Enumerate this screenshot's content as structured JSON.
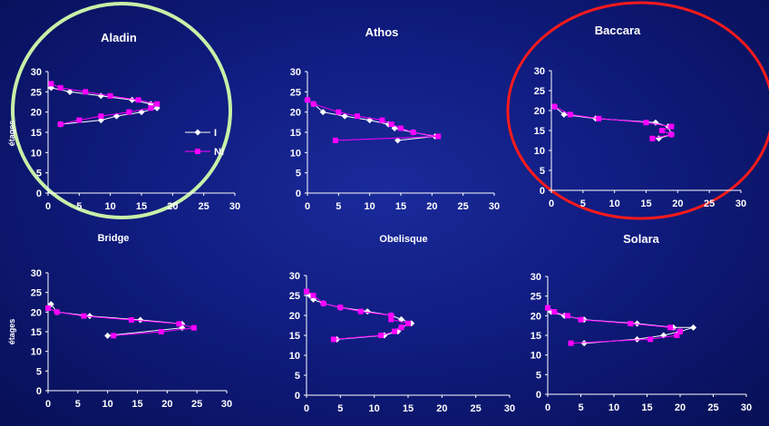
{
  "colors": {
    "series_I": "#ffffff",
    "series_NI": "#ff00ff",
    "axis": "#ffffff",
    "circle_green": "#c8f0a8",
    "circle_red": "#ff1a1a"
  },
  "legend": {
    "items": [
      "I",
      "NI"
    ]
  },
  "chart_data": [
    {
      "type": "scatter",
      "title": "Aladin",
      "ylabel": "étages",
      "xlim": [
        0,
        30
      ],
      "ylim": [
        0,
        30
      ],
      "xticks": [
        "0",
        "5",
        "10",
        "15",
        "20",
        "25",
        "30"
      ],
      "yticks": [
        "0",
        "5",
        "10",
        "15",
        "20",
        "25",
        "30"
      ],
      "highlight": "green",
      "series": [
        {
          "name": "I",
          "x": [
            0.5,
            3.5,
            8.5,
            13.5,
            16.5,
            17.5,
            15,
            11,
            8.5,
            2
          ],
          "y": [
            26,
            25,
            24,
            23,
            22,
            21,
            20,
            19,
            18,
            17
          ]
        },
        {
          "name": "NI",
          "x": [
            0.5,
            2,
            6,
            10,
            14.5,
            17.5,
            16.5,
            13,
            8.5,
            5,
            2
          ],
          "y": [
            27,
            26,
            25,
            24,
            23,
            22,
            21,
            20,
            19,
            18,
            17
          ]
        }
      ]
    },
    {
      "type": "scatter",
      "title": "Athos",
      "ylabel": "",
      "xlim": [
        0,
        30
      ],
      "ylim": [
        0,
        30
      ],
      "xticks": [
        "0",
        "5",
        "10",
        "15",
        "20",
        "25",
        "30"
      ],
      "yticks": [
        "0",
        "5",
        "10",
        "15",
        "20",
        "25",
        "30"
      ],
      "highlight": "",
      "series": [
        {
          "name": "I",
          "x": [
            0,
            1,
            2.5,
            6,
            10,
            13,
            14,
            17,
            20.5,
            14.5
          ],
          "y": [
            23,
            22,
            20,
            19,
            18,
            17,
            16,
            15,
            14,
            13
          ]
        },
        {
          "name": "NI",
          "x": [
            0,
            1,
            5,
            8,
            12,
            13.5,
            15,
            17,
            21,
            4.5
          ],
          "y": [
            23,
            22,
            20,
            19,
            18,
            17,
            16,
            15,
            14,
            13
          ]
        }
      ]
    },
    {
      "type": "scatter",
      "title": "Baccara",
      "ylabel": "",
      "xlim": [
        0,
        30
      ],
      "ylim": [
        0,
        30
      ],
      "xticks": [
        "0",
        "5",
        "10",
        "15",
        "20",
        "25",
        "30"
      ],
      "yticks": [
        "0",
        "5",
        "10",
        "15",
        "20",
        "25",
        "30"
      ],
      "highlight": "red",
      "series": [
        {
          "name": "I",
          "x": [
            0.5,
            2,
            7,
            16.5,
            18.5,
            19,
            17
          ],
          "y": [
            21,
            19,
            18,
            17,
            16,
            14,
            13
          ]
        },
        {
          "name": "NI",
          "x": [
            0.5,
            3,
            7.5,
            15,
            19,
            17.5,
            19,
            16
          ],
          "y": [
            21,
            19,
            18,
            17,
            16,
            15,
            14,
            13
          ]
        }
      ]
    },
    {
      "type": "scatter",
      "title": "Bridge",
      "ylabel": "étages",
      "xlim": [
        0,
        30
      ],
      "ylim": [
        0,
        30
      ],
      "xticks": [
        "0",
        "5",
        "10",
        "15",
        "20",
        "25",
        "30"
      ],
      "yticks": [
        "0",
        "5",
        "10",
        "15",
        "20",
        "25",
        "30"
      ],
      "highlight": "",
      "series": [
        {
          "name": "I",
          "x": [
            0.5,
            1.5,
            7,
            15.5,
            22.5,
            22.5,
            10
          ],
          "y": [
            22,
            20,
            19,
            18,
            17,
            16,
            14
          ]
        },
        {
          "name": "NI",
          "x": [
            0,
            1.5,
            6,
            14,
            22,
            24.5,
            19,
            11
          ],
          "y": [
            21,
            20,
            19,
            18,
            17,
            16,
            15,
            14
          ]
        }
      ]
    },
    {
      "type": "scatter",
      "title": "Obelisque",
      "ylabel": "",
      "xlim": [
        0,
        30
      ],
      "ylim": [
        0,
        30
      ],
      "xticks": [
        "0",
        "5",
        "10",
        "15",
        "20",
        "25",
        "30"
      ],
      "yticks": [
        "0",
        "5",
        "10",
        "15",
        "20",
        "25",
        "30"
      ],
      "highlight": "",
      "series": [
        {
          "name": "I",
          "x": [
            0.5,
            1,
            2.5,
            5,
            9,
            12.5,
            14,
            15.5,
            14,
            13.5,
            11.5,
            4.5
          ],
          "y": [
            25,
            24,
            23,
            22,
            21,
            20,
            19,
            18,
            17,
            16,
            15,
            14
          ]
        },
        {
          "name": "NI",
          "x": [
            0,
            1,
            2.5,
            5,
            8,
            12.5,
            12.5,
            15,
            14,
            13,
            11,
            4
          ],
          "y": [
            26,
            25,
            23,
            22,
            21,
            20,
            19,
            18,
            17,
            16,
            15,
            14
          ]
        }
      ]
    },
    {
      "type": "scatter",
      "title": "Solara",
      "ylabel": "",
      "xlim": [
        0,
        30
      ],
      "ylim": [
        0,
        30
      ],
      "xticks": [
        "0",
        "5",
        "10",
        "15",
        "20",
        "25",
        "30"
      ],
      "yticks": [
        "0",
        "5",
        "10",
        "15",
        "20",
        "25",
        "30"
      ],
      "highlight": "",
      "series": [
        {
          "name": "I",
          "x": [
            0.5,
            2.5,
            5.5,
            13.5,
            19,
            22,
            20,
            17.5,
            13.5,
            5.5
          ],
          "y": [
            21,
            20,
            19,
            18,
            17,
            17,
            16,
            15,
            14,
            13
          ]
        },
        {
          "name": "NI",
          "x": [
            0,
            1,
            3,
            5,
            12.5,
            18.5,
            20,
            19.5,
            15.5,
            3.5
          ],
          "y": [
            22,
            21,
            20,
            19,
            18,
            17,
            16,
            15,
            14,
            13
          ]
        }
      ]
    }
  ]
}
